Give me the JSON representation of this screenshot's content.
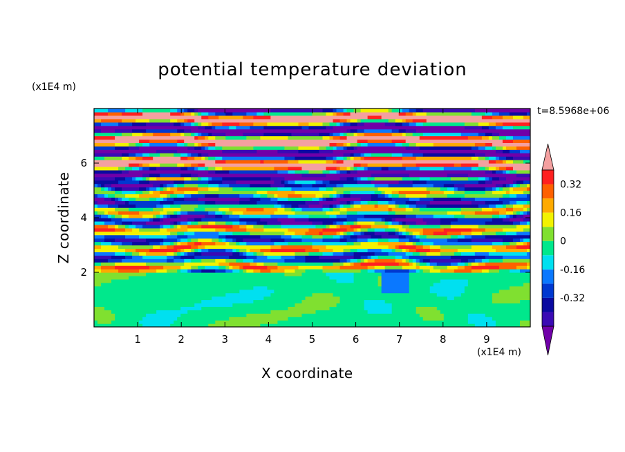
{
  "chart_data": {
    "type": "heatmap",
    "title": "potential temperature deviation",
    "xlabel": "X coordinate",
    "ylabel": "Z coordinate",
    "x_unit": "(x1E4 m)",
    "y_unit": "(x1E4 m)",
    "timestamp": "t=8.5968e+06",
    "xlim": [
      0,
      10
    ],
    "ylim": [
      0,
      8
    ],
    "x_ticks": [
      "1",
      "2",
      "3",
      "4",
      "5",
      "6",
      "7",
      "8",
      "9"
    ],
    "y_ticks": [
      "2",
      "4",
      "6"
    ],
    "colorbar": {
      "levels": [
        -0.48,
        -0.4,
        -0.32,
        -0.24,
        -0.16,
        -0.08,
        0,
        0.08,
        0.16,
        0.24,
        0.32,
        0.4,
        0.48
      ],
      "colors": [
        "#7000a8",
        "#3a0ab4",
        "#0a0aa0",
        "#0038d0",
        "#0a78ff",
        "#00e0f0",
        "#00e88c",
        "#80e030",
        "#f2f200",
        "#ffaa00",
        "#ff6000",
        "#ff2020",
        "#f4a0a0"
      ],
      "labels": [
        "0.32",
        "0.16",
        "0",
        "-0.16",
        "-0.32"
      ],
      "extend": "both"
    },
    "grid": false,
    "legend": "right"
  }
}
